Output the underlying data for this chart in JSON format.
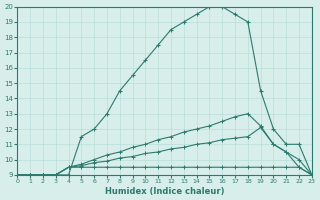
{
  "xlabel": "Humidex (Indice chaleur)",
  "background_color": "#d7eeeb",
  "line_color": "#2d7a6e",
  "grid_color": "#b8ddd9",
  "xlim": [
    0,
    23
  ],
  "ylim": [
    9,
    20
  ],
  "xticks": [
    0,
    1,
    2,
    3,
    4,
    5,
    6,
    7,
    8,
    9,
    10,
    11,
    12,
    13,
    14,
    15,
    16,
    17,
    18,
    19,
    20,
    21,
    22,
    23
  ],
  "yticks": [
    9,
    10,
    11,
    12,
    13,
    14,
    15,
    16,
    17,
    18,
    19,
    20
  ],
  "hours": [
    0,
    1,
    2,
    3,
    4,
    5,
    6,
    7,
    8,
    9,
    10,
    11,
    12,
    13,
    14,
    15,
    16,
    17,
    18,
    19,
    20,
    21,
    22,
    23
  ],
  "humidex_main": [
    9.0,
    9.0,
    9.0,
    9.0,
    9.0,
    11.5,
    12.0,
    13.0,
    14.5,
    15.5,
    16.5,
    17.5,
    18.5,
    19.0,
    19.5,
    20.0,
    20.0,
    19.5,
    19.0,
    14.5,
    12.0,
    11.0,
    11.0,
    9.0
  ],
  "line2": [
    9.0,
    9.0,
    9.0,
    9.0,
    9.5,
    9.5,
    9.5,
    9.5,
    9.5,
    9.5,
    9.5,
    9.5,
    9.5,
    9.5,
    9.5,
    9.5,
    9.5,
    9.5,
    9.5,
    9.5,
    9.5,
    9.5,
    9.5,
    9.0
  ],
  "line3": [
    9.0,
    9.0,
    9.0,
    9.0,
    9.5,
    9.7,
    10.0,
    10.3,
    10.5,
    10.8,
    11.0,
    11.3,
    11.5,
    11.8,
    12.0,
    12.2,
    12.5,
    12.8,
    13.0,
    12.2,
    11.0,
    10.5,
    10.0,
    9.0
  ],
  "line4": [
    9.0,
    9.0,
    9.0,
    9.0,
    9.5,
    9.6,
    9.8,
    9.9,
    10.1,
    10.2,
    10.4,
    10.5,
    10.7,
    10.8,
    11.0,
    11.1,
    11.3,
    11.4,
    11.5,
    12.1,
    11.0,
    10.5,
    9.5,
    9.0
  ]
}
